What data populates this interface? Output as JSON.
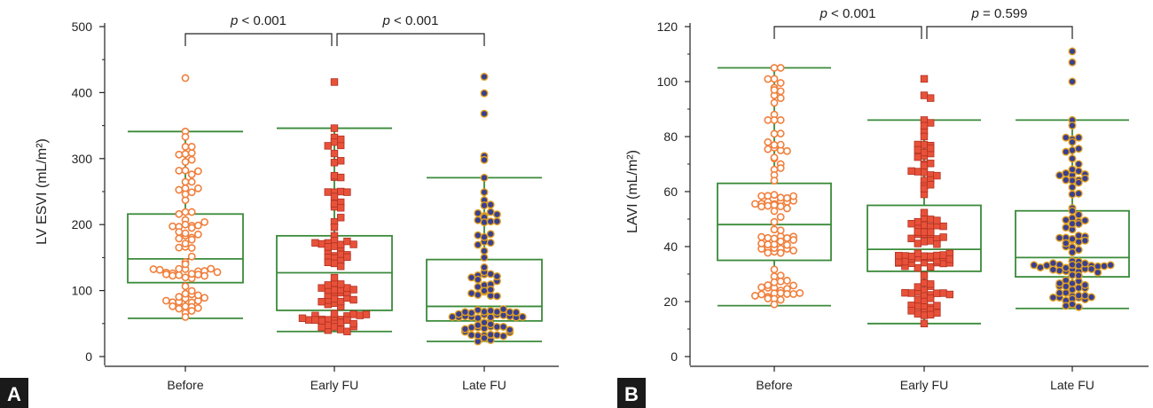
{
  "chart_data": [
    {
      "type": "box-dot",
      "panel_label": "A",
      "ylabel": "LV ESVI (mL/m²)",
      "ylim": [
        0,
        500
      ],
      "yticks": [
        0,
        100,
        200,
        300,
        400,
        500
      ],
      "categories": [
        "Before",
        "Early FU",
        "Late FU"
      ],
      "box_color": "#3a8a3a",
      "series": [
        {
          "category": "Before",
          "marker": "open-circle",
          "marker_color": "#f07f3c",
          "whisker_low": 58,
          "q1": 112,
          "median": 148,
          "q3": 216,
          "whisker_high": 341,
          "n": 88,
          "extra_points": [
            422,
            341,
            333,
            318,
            307,
            282,
            276,
            255,
            249,
            237,
            219,
            219,
            216,
            207,
            200,
            88,
            82,
            76,
            66,
            60
          ]
        },
        {
          "category": "Early FU",
          "marker": "filled-square",
          "marker_color": "#e8523a",
          "whisker_low": 38,
          "q1": 70,
          "median": 127,
          "q3": 183,
          "whisker_high": 346,
          "n": 94,
          "extra_points": [
            416,
            346,
            332,
            325,
            320,
            294,
            272,
            249,
            227,
            204,
            196,
            183,
            176,
            58,
            50,
            45,
            41,
            40,
            38
          ]
        },
        {
          "category": "Late FU",
          "marker": "filled-circle",
          "marker_color": "#3a3f8f",
          "marker_edge": "#e0a020",
          "whisker_low": 23,
          "q1": 54,
          "median": 76,
          "q3": 147,
          "whisker_high": 271,
          "n": 90,
          "extra_points": [
            424,
            399,
            368,
            304,
            298,
            271,
            249,
            237,
            229,
            213,
            211,
            174,
            160,
            150,
            32,
            28,
            25,
            23
          ]
        }
      ],
      "annotations": [
        {
          "from": "Before",
          "to": "Early FU",
          "p_symbol": "p",
          "p_rest": " < 0.001"
        },
        {
          "from": "Early FU",
          "to": "Late FU",
          "p_symbol": "p",
          "p_rest": " < 0.001"
        }
      ]
    },
    {
      "type": "box-dot",
      "panel_label": "B",
      "ylabel": "LAVI (mL/m²)",
      "ylim": [
        0,
        120
      ],
      "yticks": [
        0,
        20,
        40,
        60,
        80,
        100,
        120
      ],
      "categories": [
        "Before",
        "Early FU",
        "Late FU"
      ],
      "box_color": "#3a8a3a",
      "series": [
        {
          "category": "Before",
          "marker": "open-circle",
          "marker_color": "#f07f3c",
          "whisker_low": 18.5,
          "q1": 35,
          "median": 48,
          "q3": 63,
          "whisker_high": 105,
          "n": 100,
          "extra_points": [
            105,
            105,
            101,
            95,
            94,
            88,
            86,
            86,
            86,
            81,
            76,
            75,
            72,
            70,
            68,
            66,
            64,
            25,
            24,
            23,
            21,
            19
          ]
        },
        {
          "category": "Early FU",
          "marker": "filled-square",
          "marker_color": "#e8523a",
          "whisker_low": 12,
          "q1": 31,
          "median": 39,
          "q3": 55,
          "whisker_high": 86,
          "n": 112,
          "extra_points": [
            101,
            95,
            94,
            86,
            85,
            82,
            80,
            77,
            73,
            70,
            67,
            66,
            64,
            62,
            59,
            24,
            22,
            20,
            18,
            16,
            15,
            12
          ]
        },
        {
          "category": "Late FU",
          "marker": "filled-circle",
          "marker_color": "#3a3f8f",
          "marker_edge": "#e0a020",
          "whisker_low": 17.5,
          "q1": 29,
          "median": 36,
          "q3": 53,
          "whisker_high": 86,
          "n": 102,
          "extra_points": [
            111,
            107,
            100,
            86,
            84,
            79,
            78,
            75,
            72,
            70,
            66,
            64,
            59,
            54,
            53,
            22,
            21,
            19,
            18
          ]
        }
      ],
      "annotations": [
        {
          "from": "Before",
          "to": "Early FU",
          "p_symbol": "p",
          "p_rest": " < 0.001"
        },
        {
          "from": "Early FU",
          "to": "Late FU",
          "p_symbol": "p",
          "p_rest": " = 0.599"
        }
      ]
    }
  ]
}
